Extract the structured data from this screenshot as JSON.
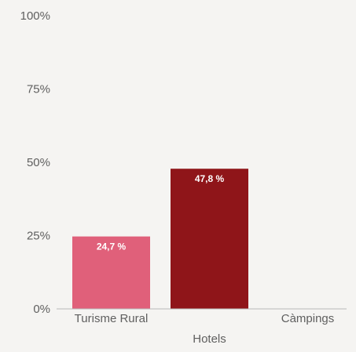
{
  "chart_data": {
    "type": "bar",
    "categories": [
      "Turisme Rural",
      "Hotels",
      "Càmpings"
    ],
    "values": [
      24.7,
      47.8,
      0
    ],
    "data_labels": [
      "24,7 %",
      "47,8 %",
      ""
    ],
    "bar_colors": [
      "#e0607a",
      "#8f1519",
      "#8f1519"
    ],
    "ylim": [
      0,
      100
    ],
    "y_ticks": [
      0,
      25,
      50,
      75,
      100
    ],
    "y_tick_labels": [
      "0%",
      "25%",
      "50%",
      "75%",
      "100%"
    ],
    "grid": false,
    "legend": false,
    "title": "",
    "xlabel": "",
    "ylabel": ""
  },
  "colors": {
    "background": "#f5f4f2",
    "axis_line": "#b8b8b8",
    "text": "#5f5f5f",
    "data_label": "#ffffff"
  }
}
